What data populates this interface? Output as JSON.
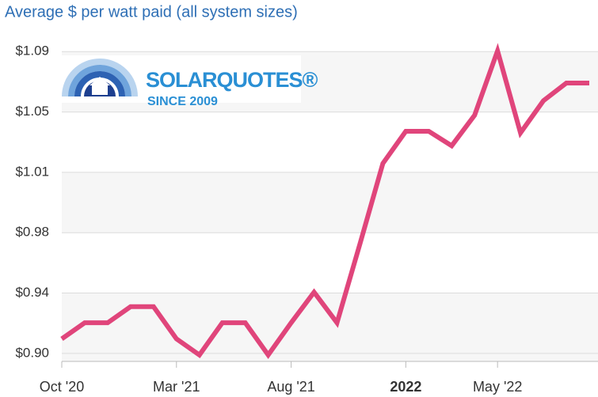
{
  "chart_data": {
    "type": "line",
    "title": "Average $ per watt paid (all system sizes)",
    "categories": [
      "Oct '20",
      null,
      null,
      null,
      null,
      "Mar '21",
      null,
      null,
      null,
      null,
      "Aug '21",
      null,
      null,
      null,
      null,
      "2022",
      null,
      null,
      null,
      "May '22",
      null,
      null,
      null,
      null
    ],
    "values": [
      0.909,
      0.919,
      0.919,
      0.929,
      0.929,
      0.909,
      0.899,
      0.919,
      0.919,
      0.899,
      0.919,
      0.938,
      0.919,
      0.968,
      1.018,
      1.038,
      1.038,
      1.029,
      1.048,
      1.088,
      1.037,
      1.057,
      1.068,
      1.068
    ],
    "color": "#e0457b",
    "ylim": [
      0.895,
      1.095
    ],
    "yticks": [
      {
        "value": 0.9,
        "label": "$0.90"
      },
      {
        "value": 0.9375,
        "label": "$0.94"
      },
      {
        "value": 0.975,
        "label": "$0.98"
      },
      {
        "value": 1.0125,
        "label": "$1.01"
      },
      {
        "value": 1.05,
        "label": "$1.05"
      },
      {
        "value": 1.0875,
        "label": "$1.09"
      }
    ],
    "grid": true
  },
  "logo": {
    "name": "SOLARQUOTES®",
    "tagline": "SINCE 2009"
  }
}
